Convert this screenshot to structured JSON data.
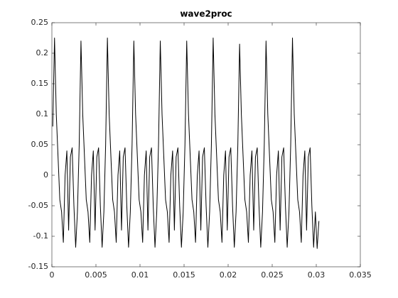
{
  "chart_data": {
    "type": "line",
    "title": "wave2proc",
    "color": "#000000",
    "x": [
      0.0001,
      0.0003,
      0.0005,
      0.0007,
      0.0009,
      0.0011,
      0.0013,
      0.0015,
      0.0017,
      0.0019,
      0.0021,
      0.0023,
      0.0025,
      0.0027,
      0.0029,
      0.0031,
      0.0033,
      0.0035,
      0.0037,
      0.0039,
      0.0041,
      0.0043,
      0.0045,
      0.0047,
      0.0049,
      0.0051,
      0.0053,
      0.0055,
      0.0057,
      0.0059,
      0.0061,
      0.0063,
      0.0065,
      0.0067,
      0.0069,
      0.0071,
      0.0073,
      0.0075,
      0.0077,
      0.0079,
      0.0081,
      0.0083,
      0.0085,
      0.0087,
      0.0089,
      0.0091,
      0.0093,
      0.0095,
      0.0097,
      0.0099,
      0.0101,
      0.0103,
      0.0105,
      0.0107,
      0.0109,
      0.0111,
      0.0113,
      0.0115,
      0.0117,
      0.0119,
      0.0121,
      0.0123,
      0.0125,
      0.0127,
      0.0129,
      0.0131,
      0.0133,
      0.0135,
      0.0137,
      0.0139,
      0.0141,
      0.0143,
      0.0145,
      0.0147,
      0.0149,
      0.0151,
      0.0153,
      0.0155,
      0.0157,
      0.0159,
      0.0161,
      0.0163,
      0.0165,
      0.0167,
      0.0169,
      0.0171,
      0.0173,
      0.0175,
      0.0177,
      0.0179,
      0.0181,
      0.0183,
      0.0185,
      0.0187,
      0.0189,
      0.0191,
      0.0193,
      0.0195,
      0.0197,
      0.0199,
      0.0201,
      0.0203,
      0.0205,
      0.0207,
      0.0209,
      0.0211,
      0.0213,
      0.0215,
      0.0217,
      0.0219,
      0.0221,
      0.0223,
      0.0225,
      0.0227,
      0.0229,
      0.0231,
      0.0233,
      0.0235,
      0.0237,
      0.0239,
      0.0241,
      0.0243,
      0.0245,
      0.0247,
      0.0249,
      0.0251,
      0.0253,
      0.0255,
      0.0257,
      0.0259,
      0.0261,
      0.0263,
      0.0265,
      0.0267,
      0.0269,
      0.0271,
      0.0273,
      0.0275,
      0.0277,
      0.0279,
      0.0281,
      0.0283,
      0.0285,
      0.0287,
      0.0289,
      0.0291,
      0.0293,
      0.0295,
      0.0297,
      0.0299,
      0.0301,
      0.0303
    ],
    "values": [
      0.08,
      0.225,
      0.1,
      0.03,
      -0.04,
      -0.06,
      -0.11,
      0.0,
      0.04,
      -0.09,
      0.03,
      0.045,
      -0.05,
      -0.118,
      -0.06,
      0.05,
      0.22,
      0.1,
      0.03,
      -0.04,
      -0.06,
      -0.11,
      0.0,
      0.04,
      -0.09,
      0.03,
      0.045,
      -0.05,
      -0.118,
      -0.06,
      0.05,
      0.225,
      0.1,
      0.03,
      -0.04,
      -0.06,
      -0.11,
      0.0,
      0.04,
      -0.09,
      0.03,
      0.045,
      -0.05,
      -0.118,
      -0.06,
      0.05,
      0.22,
      0.1,
      0.03,
      -0.04,
      -0.06,
      -0.11,
      0.0,
      0.04,
      -0.09,
      0.03,
      0.045,
      -0.05,
      -0.118,
      -0.06,
      0.05,
      0.22,
      0.1,
      0.03,
      -0.04,
      -0.06,
      -0.11,
      0.0,
      0.04,
      -0.09,
      0.03,
      0.045,
      -0.05,
      -0.118,
      -0.06,
      0.05,
      0.22,
      0.1,
      0.03,
      -0.04,
      -0.06,
      -0.11,
      0.0,
      0.04,
      -0.09,
      0.03,
      0.045,
      -0.05,
      -0.118,
      -0.06,
      0.05,
      0.225,
      0.1,
      0.03,
      -0.04,
      -0.06,
      -0.11,
      0.0,
      0.04,
      -0.09,
      0.03,
      0.045,
      -0.05,
      -0.118,
      -0.06,
      0.05,
      0.215,
      0.1,
      0.03,
      -0.04,
      -0.06,
      -0.11,
      0.0,
      0.04,
      -0.09,
      0.03,
      0.045,
      -0.05,
      -0.118,
      -0.06,
      0.05,
      0.22,
      0.1,
      0.03,
      -0.04,
      -0.06,
      -0.11,
      0.0,
      0.04,
      -0.09,
      0.03,
      0.045,
      -0.05,
      -0.118,
      -0.06,
      0.05,
      0.225,
      0.1,
      0.03,
      -0.04,
      -0.06,
      -0.11,
      0.0,
      0.04,
      -0.09,
      0.03,
      0.045,
      -0.05,
      -0.118,
      -0.06,
      -0.12,
      -0.075
    ],
    "xlim": [
      0,
      0.035
    ],
    "xticks": [
      0,
      0.005,
      0.01,
      0.015,
      0.02,
      0.025,
      0.03,
      0.035
    ],
    "ylim": [
      -0.15,
      0.25
    ],
    "yticks": [
      -0.15,
      -0.1,
      -0.05,
      0,
      0.05,
      0.1,
      0.15,
      0.2,
      0.25
    ]
  }
}
